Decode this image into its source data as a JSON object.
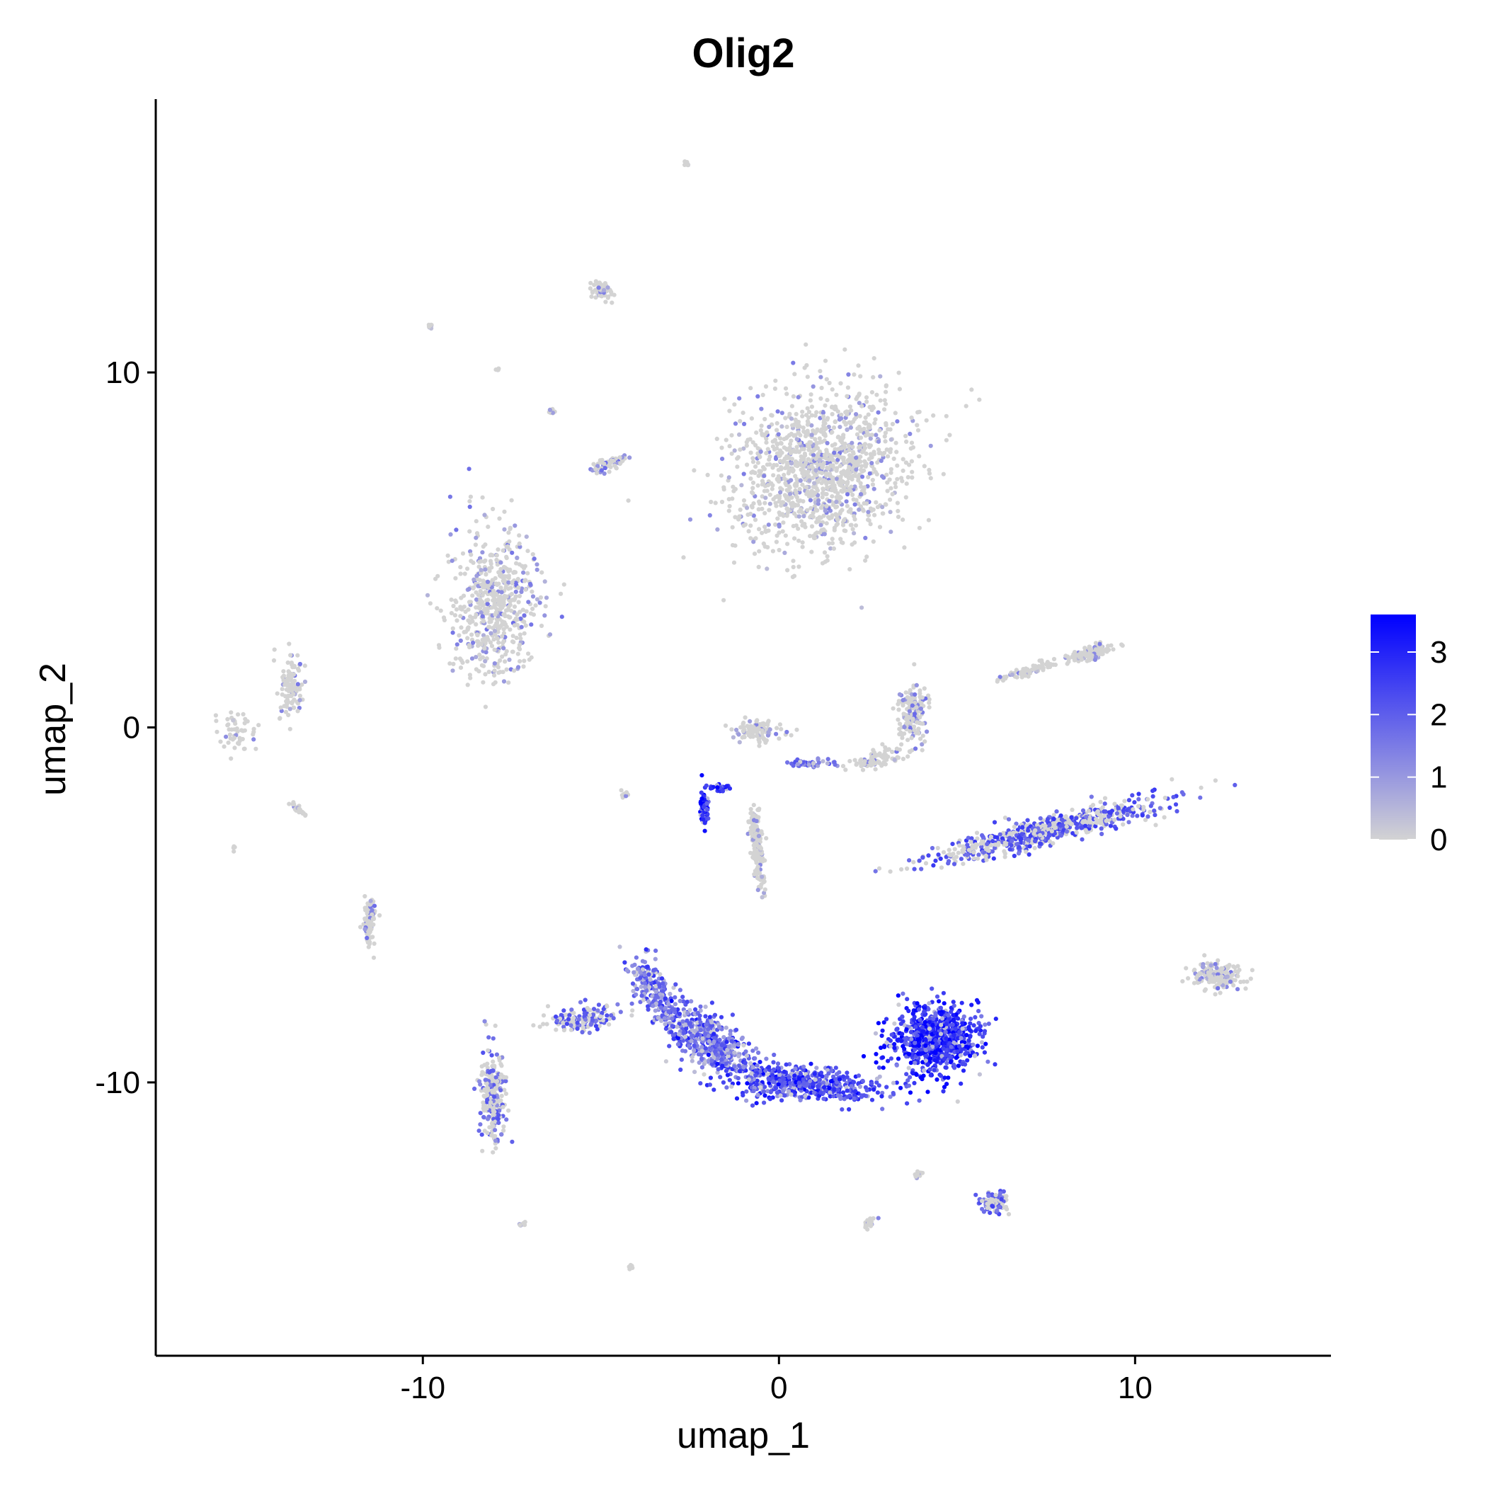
{
  "chart_data": {
    "type": "scatter",
    "title": "Olig2",
    "xlabel": "umap_1",
    "ylabel": "umap_2",
    "xlim": [
      -17.5,
      15.5
    ],
    "ylim": [
      -17.7,
      17.7
    ],
    "x_ticks": [
      -10,
      0,
      10
    ],
    "x_tick_labels": [
      "-10",
      "0",
      "10"
    ],
    "y_ticks": [
      -10,
      0,
      10
    ],
    "y_tick_labels": [
      "-10",
      "0",
      "10"
    ],
    "grid": false,
    "color_scale": {
      "name": "",
      "low_color": "#d3d3d3",
      "high_color": "#0000ff",
      "range": [
        0,
        3.6
      ],
      "ticks": [
        0,
        1,
        2,
        3
      ],
      "tick_labels": [
        "0",
        "1",
        "2",
        "3"
      ],
      "placement": "right"
    },
    "clusters": [
      {
        "x": 1.2,
        "y": 7.3,
        "sx": 2.3,
        "sy": 1.9,
        "rot": 25,
        "n": 1300,
        "expr": 0.25
      },
      {
        "x": -8.0,
        "y": 3.5,
        "sx": 1.1,
        "sy": 1.9,
        "rot": 0,
        "n": 600,
        "expr": 0.35
      },
      {
        "x": 4.4,
        "y": -8.8,
        "sx": 1.1,
        "sy": 0.9,
        "rot": 0,
        "n": 800,
        "expr": 2.7
      },
      {
        "x": 0.6,
        "y": -10.0,
        "sx": 2.0,
        "sy": 0.45,
        "rot": -5,
        "n": 500,
        "expr": 2.3
      },
      {
        "x": -2.0,
        "y": -8.8,
        "sx": 1.6,
        "sy": 0.6,
        "rot": -35,
        "n": 500,
        "expr": 1.7
      },
      {
        "x": -3.6,
        "y": -7.3,
        "sx": 0.4,
        "sy": 1.0,
        "rot": 25,
        "n": 180,
        "expr": 1.6
      },
      {
        "x": -5.5,
        "y": -8.2,
        "sx": 1.0,
        "sy": 0.3,
        "rot": 10,
        "n": 160,
        "expr": 0.9
      },
      {
        "x": -8.0,
        "y": -10.4,
        "sx": 0.35,
        "sy": 1.1,
        "rot": 0,
        "n": 260,
        "expr": 0.7
      },
      {
        "x": 7.5,
        "y": -2.9,
        "sx": 2.9,
        "sy": 0.35,
        "rot": 14,
        "n": 650,
        "expr": 1.0
      },
      {
        "x": 8.8,
        "y": 2.1,
        "sx": 0.6,
        "sy": 0.18,
        "rot": 15,
        "n": 130,
        "expr": 0.3
      },
      {
        "x": 7.0,
        "y": 1.6,
        "sx": 1.0,
        "sy": 0.1,
        "rot": 18,
        "n": 70,
        "expr": 0.2
      },
      {
        "x": 12.3,
        "y": -7.0,
        "sx": 0.6,
        "sy": 0.35,
        "rot": 0,
        "n": 180,
        "expr": 0.4
      },
      {
        "x": 6.0,
        "y": -13.4,
        "sx": 0.35,
        "sy": 0.25,
        "rot": 0,
        "n": 110,
        "expr": 0.9
      },
      {
        "x": -2.1,
        "y": -2.3,
        "sx": 0.1,
        "sy": 0.45,
        "rot": 0,
        "n": 90,
        "expr": 3.1
      },
      {
        "x": -1.7,
        "y": -1.7,
        "sx": 0.25,
        "sy": 0.08,
        "rot": 0,
        "n": 40,
        "expr": 3.0
      },
      {
        "x": -0.6,
        "y": -3.4,
        "sx": 0.15,
        "sy": 1.1,
        "rot": 5,
        "n": 170,
        "expr": 0.15
      },
      {
        "x": 3.8,
        "y": 0.4,
        "sx": 0.4,
        "sy": 0.8,
        "rot": 0,
        "n": 160,
        "expr": 0.4
      },
      {
        "x": 2.7,
        "y": -0.9,
        "sx": 0.7,
        "sy": 0.2,
        "rot": 15,
        "n": 90,
        "expr": 0.3
      },
      {
        "x": 0.9,
        "y": -1.0,
        "sx": 0.6,
        "sy": 0.1,
        "rot": 0,
        "n": 50,
        "expr": 1.6
      },
      {
        "x": -0.6,
        "y": -0.1,
        "sx": 0.7,
        "sy": 0.3,
        "rot": 0,
        "n": 100,
        "expr": 0.2
      },
      {
        "x": -4.8,
        "y": 7.4,
        "sx": 0.5,
        "sy": 0.15,
        "rot": 20,
        "n": 60,
        "expr": 0.6
      },
      {
        "x": -5.0,
        "y": 12.3,
        "sx": 0.3,
        "sy": 0.2,
        "rot": -30,
        "n": 60,
        "expr": 0.3
      },
      {
        "x": -13.7,
        "y": 1.2,
        "sx": 0.3,
        "sy": 0.9,
        "rot": 0,
        "n": 110,
        "expr": 0.3
      },
      {
        "x": -15.2,
        "y": -0.2,
        "sx": 0.5,
        "sy": 0.5,
        "rot": 40,
        "n": 50,
        "expr": 0.1
      },
      {
        "x": -13.5,
        "y": -2.3,
        "sx": 0.3,
        "sy": 0.06,
        "rot": -40,
        "n": 30,
        "expr": 0.1
      },
      {
        "x": -11.5,
        "y": -5.5,
        "sx": 0.15,
        "sy": 0.6,
        "rot": 0,
        "n": 90,
        "expr": 0.4
      },
      {
        "x": -2.6,
        "y": 15.9,
        "sx": 0.05,
        "sy": 0.08,
        "rot": 0,
        "n": 10,
        "expr": 0.1
      },
      {
        "x": -9.8,
        "y": 11.3,
        "sx": 0.05,
        "sy": 0.05,
        "rot": 0,
        "n": 8,
        "expr": 0.1
      },
      {
        "x": -6.4,
        "y": 8.9,
        "sx": 0.1,
        "sy": 0.06,
        "rot": 0,
        "n": 8,
        "expr": 0.1
      },
      {
        "x": -7.9,
        "y": 10.1,
        "sx": 0.05,
        "sy": 0.05,
        "rot": 0,
        "n": 6,
        "expr": 0.1
      },
      {
        "x": 3.9,
        "y": -12.6,
        "sx": 0.2,
        "sy": 0.08,
        "rot": 30,
        "n": 14,
        "expr": 0.1
      },
      {
        "x": 2.5,
        "y": -14.0,
        "sx": 0.3,
        "sy": 0.1,
        "rot": 40,
        "n": 18,
        "expr": 0.3
      },
      {
        "x": -7.2,
        "y": -14.0,
        "sx": 0.08,
        "sy": 0.06,
        "rot": 0,
        "n": 8,
        "expr": 0.1
      },
      {
        "x": -4.2,
        "y": -15.2,
        "sx": 0.08,
        "sy": 0.06,
        "rot": 0,
        "n": 8,
        "expr": 0.1
      },
      {
        "x": -4.3,
        "y": -1.9,
        "sx": 0.15,
        "sy": 0.08,
        "rot": 0,
        "n": 10,
        "expr": 0.1
      },
      {
        "x": -15.3,
        "y": -3.4,
        "sx": 0.05,
        "sy": 0.08,
        "rot": 0,
        "n": 5,
        "expr": 0.1
      }
    ]
  }
}
